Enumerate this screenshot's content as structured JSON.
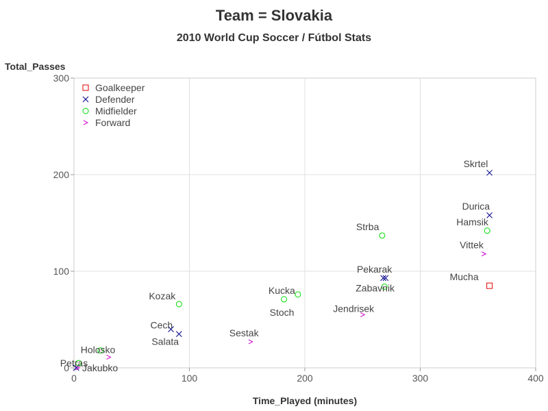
{
  "chart_data": {
    "type": "scatter",
    "title": "Team = Slovakia",
    "subtitle": "2010 World Cup Soccer / Fútbol Stats",
    "xlabel": "Time_Played (minutes)",
    "ylabel": "Total_Passes",
    "xlim": [
      0,
      400
    ],
    "ylim": [
      0,
      300
    ],
    "xticks": [
      0,
      100,
      200,
      300,
      400
    ],
    "yticks": [
      0,
      100,
      200,
      300
    ],
    "grid": true,
    "legend_position": "top-left",
    "series": [
      {
        "name": "Goalkeeper",
        "marker": "square",
        "color": "#e00000",
        "points": [
          {
            "label": "Mucha",
            "x": 360,
            "y": 85
          }
        ]
      },
      {
        "name": "Defender",
        "marker": "x",
        "color": "#00008b",
        "points": [
          {
            "label": "Skrtel",
            "x": 360,
            "y": 202
          },
          {
            "label": "Durica",
            "x": 360,
            "y": 158
          },
          {
            "label": "Pekarak",
            "x": 270,
            "y": 93
          },
          {
            "label": "",
            "x": 268,
            "y": 93
          },
          {
            "label": "Cech",
            "x": 84,
            "y": 40
          },
          {
            "label": "Salata",
            "x": 91,
            "y": 35
          },
          {
            "label": "",
            "x": 2,
            "y": 0
          }
        ]
      },
      {
        "name": "Midfielder",
        "marker": "circle",
        "color": "#00dd00",
        "points": [
          {
            "label": "Hamsik",
            "x": 358,
            "y": 142
          },
          {
            "label": "Strba",
            "x": 267,
            "y": 137
          },
          {
            "label": "Zabavnik",
            "x": 269,
            "y": 84
          },
          {
            "label": "Kucka",
            "x": 194,
            "y": 76
          },
          {
            "label": "Stoch",
            "x": 182,
            "y": 71
          },
          {
            "label": "Kozak",
            "x": 91,
            "y": 66
          },
          {
            "label": "Holosko",
            "x": 23,
            "y": 18
          },
          {
            "label": "Petras",
            "x": 4,
            "y": 5
          }
        ]
      },
      {
        "name": "Forward",
        "marker": "gt",
        "color": "#cc00cc",
        "points": [
          {
            "label": "Vittek",
            "x": 355,
            "y": 118
          },
          {
            "label": "Jendrisek",
            "x": 250,
            "y": 55
          },
          {
            "label": "Sestak",
            "x": 153,
            "y": 27
          },
          {
            "label": "",
            "x": 30,
            "y": 11
          },
          {
            "label": "Jakubko",
            "x": 3,
            "y": 0
          }
        ]
      }
    ]
  }
}
